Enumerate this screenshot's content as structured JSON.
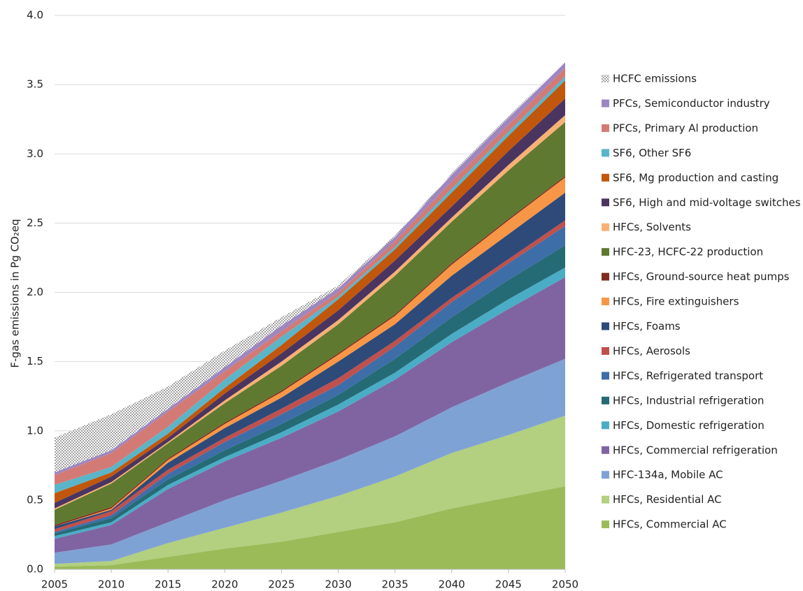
{
  "chart_data": {
    "type": "stacked-area",
    "y_label": "F-gas emissions in Pg CO₂eq",
    "x": [
      2005,
      2010,
      2015,
      2020,
      2025,
      2030,
      2035,
      2040,
      2045,
      2050
    ],
    "xlim": [
      2005,
      2050
    ],
    "xticks": [
      2005,
      2010,
      2015,
      2020,
      2025,
      2030,
      2035,
      2040,
      2045,
      2050
    ],
    "ylim": [
      0,
      4
    ],
    "yticks": [
      {
        "value": 0,
        "label": "0.0"
      },
      0.5,
      {
        "value": 1,
        "label": "1.0"
      },
      1.5,
      {
        "value": 2,
        "label": "2.0"
      },
      2.5,
      {
        "value": 3,
        "label": "3.0"
      },
      3.5,
      {
        "value": 4,
        "label": "4.0"
      }
    ],
    "grid": true,
    "series": [
      {
        "name": "HFCs, Commercial AC",
        "color": "#9bbb59",
        "values": [
          0.02,
          0.03,
          0.09,
          0.15,
          0.2,
          0.27,
          0.34,
          0.44,
          0.52,
          0.6
        ]
      },
      {
        "name": "HFCs, Residential AC",
        "color": "#b2d07f",
        "values": [
          0.02,
          0.03,
          0.1,
          0.15,
          0.21,
          0.26,
          0.33,
          0.4,
          0.45,
          0.51
        ]
      },
      {
        "name": "HFC-134a, Mobile AC",
        "color": "#7fa2d4",
        "values": [
          0.08,
          0.12,
          0.15,
          0.2,
          0.23,
          0.26,
          0.29,
          0.33,
          0.38,
          0.41
        ]
      },
      {
        "name": "HFCs, Commercial refrigeration",
        "color": "#8064a2",
        "values": [
          0.1,
          0.14,
          0.24,
          0.28,
          0.31,
          0.35,
          0.41,
          0.47,
          0.53,
          0.59
        ]
      },
      {
        "name": "HFCs, Domestic refrigeration",
        "color": "#4bacc6",
        "values": [
          0.02,
          0.02,
          0.03,
          0.03,
          0.04,
          0.05,
          0.05,
          0.06,
          0.07,
          0.07
        ]
      },
      {
        "name": "HFCs, Industrial refrigeration",
        "color": "#256b75",
        "values": [
          0.02,
          0.03,
          0.04,
          0.05,
          0.06,
          0.07,
          0.1,
          0.12,
          0.14,
          0.16
        ]
      },
      {
        "name": "HFCs, Refrigerated transport",
        "color": "#3d6ea8",
        "values": [
          0.01,
          0.02,
          0.04,
          0.06,
          0.07,
          0.07,
          0.09,
          0.11,
          0.12,
          0.14
        ]
      },
      {
        "name": "HFCs, Aerosols",
        "color": "#c0504d",
        "values": [
          0.02,
          0.03,
          0.03,
          0.03,
          0.04,
          0.05,
          0.04,
          0.03,
          0.03,
          0.04
        ]
      },
      {
        "name": "HFCs, Foams",
        "color": "#2e4a78",
        "values": [
          0.02,
          0.01,
          0.05,
          0.07,
          0.08,
          0.12,
          0.12,
          0.16,
          0.18,
          0.2
        ]
      },
      {
        "name": "HFCs, Fire extinguishers",
        "color": "#f79646",
        "values": [
          0.0,
          0.01,
          0.02,
          0.03,
          0.04,
          0.05,
          0.06,
          0.08,
          0.1,
          0.11
        ]
      },
      {
        "name": "HFCs, Ground-source heat pumps",
        "color": "#7f2c1e",
        "values": [
          0.01,
          0.01,
          0.01,
          0.01,
          0.01,
          0.01,
          0.01,
          0.01,
          0.01,
          0.01
        ]
      },
      {
        "name": "HFC-23, HCFC-22 production",
        "color": "#5f7a30",
        "values": [
          0.11,
          0.17,
          0.11,
          0.14,
          0.18,
          0.21,
          0.28,
          0.3,
          0.35,
          0.39
        ]
      },
      {
        "name": "HFCs, Solvents",
        "color": "#f9b074",
        "values": [
          0.01,
          0.01,
          0.01,
          0.02,
          0.03,
          0.03,
          0.03,
          0.03,
          0.04,
          0.05
        ]
      },
      {
        "name": "SF6, High and mid-voltage switches",
        "color": "#4a3560",
        "values": [
          0.04,
          0.04,
          0.03,
          0.05,
          0.06,
          0.07,
          0.08,
          0.08,
          0.1,
          0.12
        ]
      },
      {
        "name": "SF6, Mg production and casting",
        "color": "#c0570c",
        "values": [
          0.07,
          0.03,
          0.03,
          0.04,
          0.06,
          0.08,
          0.08,
          0.1,
          0.11,
          0.13
        ]
      },
      {
        "name": "SF6, Other SF6",
        "color": "#5bb5c8",
        "values": [
          0.06,
          0.04,
          0.05,
          0.06,
          0.06,
          0.02,
          0.02,
          0.03,
          0.03,
          0.03
        ]
      },
      {
        "name": "PFCs, Primary Al production",
        "color": "#d47a74",
        "values": [
          0.07,
          0.1,
          0.11,
          0.06,
          0.04,
          0.03,
          0.04,
          0.05,
          0.05,
          0.06
        ]
      },
      {
        "name": "PFCs, Semiconductor industry",
        "color": "#9d87c0",
        "values": [
          0.02,
          0.02,
          0.02,
          0.03,
          0.04,
          0.03,
          0.03,
          0.05,
          0.05,
          0.04
        ]
      },
      {
        "name": "HCFC emissions",
        "color": "#000000",
        "pattern": "dots",
        "values": [
          0.25,
          0.26,
          0.16,
          0.12,
          0.06,
          0.02,
          0.01,
          0.01,
          0.01,
          0.01
        ]
      }
    ]
  }
}
